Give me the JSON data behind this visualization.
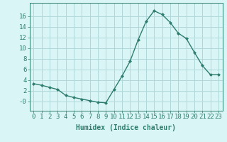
{
  "x": [
    0,
    1,
    2,
    3,
    4,
    5,
    6,
    7,
    8,
    9,
    10,
    11,
    12,
    13,
    14,
    15,
    16,
    17,
    18,
    19,
    20,
    21,
    22,
    23
  ],
  "y": [
    3.3,
    3.0,
    2.6,
    2.2,
    1.1,
    0.7,
    0.4,
    0.1,
    -0.2,
    -0.3,
    2.2,
    4.7,
    7.5,
    11.5,
    15.0,
    17.0,
    16.3,
    14.8,
    12.8,
    11.8,
    9.2,
    6.7,
    5.0,
    5.0
  ],
  "line_color": "#2e7d6e",
  "marker": "D",
  "marker_size": 2.0,
  "bg_color": "#d9f5f5",
  "grid_color": "#b0d8d8",
  "xlabel": "Humidex (Indice chaleur)",
  "xlabel_fontsize": 7,
  "ylabel_ticks": [
    0,
    2,
    4,
    6,
    8,
    10,
    12,
    14,
    16
  ],
  "ylim": [
    -1.8,
    18.5
  ],
  "xlim": [
    -0.5,
    23.5
  ],
  "tick_label_fontsize": 6.5,
  "ytick_labels": [
    "-0",
    "2",
    "4",
    "6",
    "8",
    "10",
    "12",
    "14",
    "16"
  ],
  "xtick_labels": [
    "0",
    "1",
    "2",
    "3",
    "4",
    "5",
    "6",
    "7",
    "8",
    "9",
    "10",
    "11",
    "12",
    "13",
    "14",
    "15",
    "16",
    "17",
    "18",
    "19",
    "20",
    "21",
    "22",
    "23"
  ]
}
